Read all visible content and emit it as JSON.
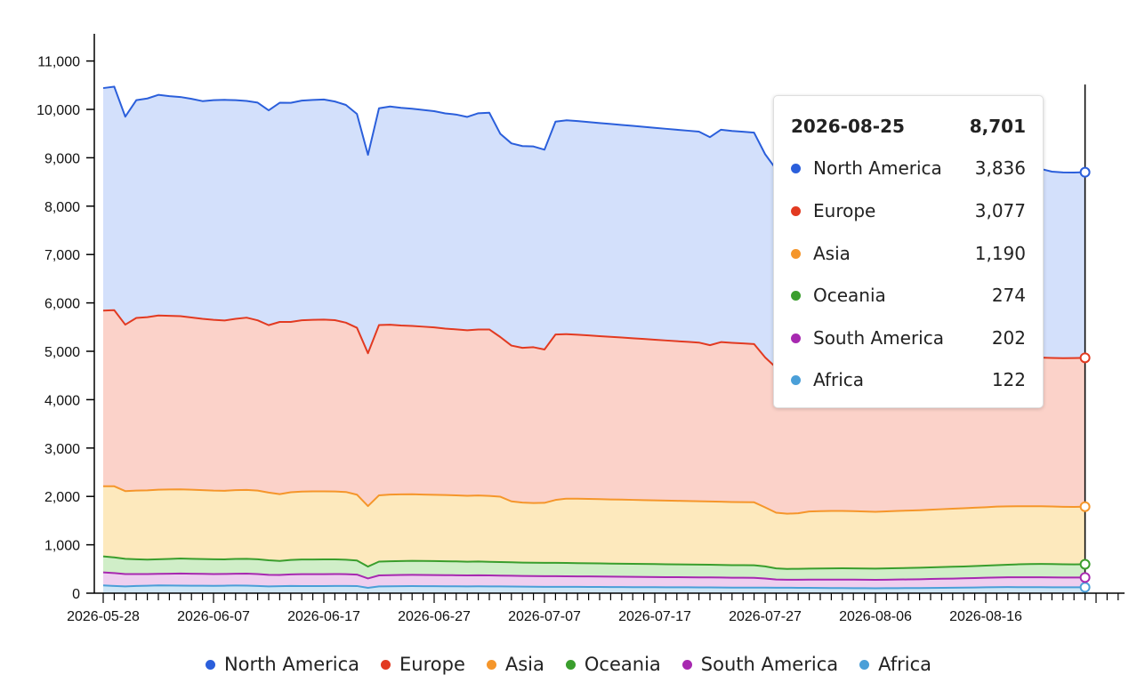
{
  "chart_data": {
    "type": "area",
    "stacked": true,
    "x_start": "2026-05-28",
    "x_end": "2026-08-25",
    "ylim": [
      0,
      11400
    ],
    "y_ticks": [
      "0",
      "1,000",
      "2,000",
      "3,000",
      "4,000",
      "5,000",
      "6,000",
      "7,000",
      "8,000",
      "9,000",
      "10,000",
      "11,000"
    ],
    "x_ticks": [
      "2026-05-28",
      "2026-06-07",
      "2026-06-17",
      "2026-06-27",
      "2026-07-07",
      "2026-07-17",
      "2026-07-27",
      "2026-08-06",
      "2026-08-16"
    ],
    "series": [
      {
        "name": "Africa",
        "color": "#4a9fd8",
        "fill": "#cfe6f6",
        "values": [
          160,
          150,
          140,
          150,
          155,
          160,
          158,
          156,
          155,
          154,
          152,
          155,
          158,
          156,
          150,
          140,
          145,
          150,
          148,
          146,
          148,
          150,
          150,
          148,
          110,
          140,
          142,
          145,
          146,
          145,
          144,
          143,
          142,
          140,
          142,
          141,
          140,
          138,
          136,
          134,
          132,
          132,
          131,
          130,
          129,
          128,
          127,
          126,
          125,
          124,
          123,
          122,
          121,
          121,
          120,
          120,
          118,
          116,
          116,
          115,
          114,
          113,
          112,
          111,
          110,
          108,
          106,
          105,
          104,
          103,
          102,
          103,
          104,
          105,
          106,
          108,
          110,
          112,
          115,
          118,
          121,
          124,
          126,
          125,
          124,
          123,
          122,
          121,
          121,
          122
        ]
      },
      {
        "name": "South America",
        "color": "#a729b0",
        "fill": "#eecff0",
        "values": [
          270,
          265,
          255,
          245,
          240,
          240,
          245,
          250,
          248,
          246,
          244,
          242,
          245,
          248,
          246,
          240,
          232,
          238,
          244,
          246,
          246,
          246,
          242,
          236,
          195,
          228,
          230,
          232,
          233,
          232,
          231,
          230,
          229,
          227,
          228,
          226,
          224,
          222,
          220,
          220,
          220,
          220,
          219,
          218,
          217,
          216,
          215,
          214,
          213,
          212,
          211,
          210,
          209,
          208,
          207,
          206,
          205,
          204,
          203,
          202,
          190,
          170,
          165,
          166,
          170,
          172,
          175,
          176,
          176,
          175,
          174,
          176,
          178,
          180,
          182,
          185,
          188,
          190,
          192,
          195,
          198,
          200,
          202,
          204,
          205,
          206,
          205,
          203,
          202,
          202
        ]
      },
      {
        "name": "Oceania",
        "color": "#3a9e2d",
        "fill": "#d0eec8",
        "values": [
          330,
          325,
          315,
          305,
          300,
          300,
          305,
          310,
          308,
          306,
          304,
          302,
          305,
          306,
          304,
          300,
          290,
          298,
          304,
          305,
          305,
          303,
          300,
          292,
          245,
          285,
          287,
          288,
          290,
          290,
          289,
          287,
          286,
          283,
          284,
          282,
          280,
          278,
          276,
          275,
          275,
          275,
          274,
          273,
          272,
          271,
          270,
          270,
          269,
          268,
          267,
          266,
          265,
          264,
          263,
          262,
          261,
          260,
          260,
          259,
          250,
          230,
          225,
          226,
          228,
          230,
          232,
          233,
          233,
          232,
          231,
          233,
          235,
          236,
          238,
          240,
          242,
          244,
          245,
          248,
          250,
          255,
          260,
          268,
          272,
          275,
          276,
          274,
          272,
          274
        ]
      },
      {
        "name": "Asia",
        "color": "#f5962b",
        "fill": "#fde9bd",
        "values": [
          1450,
          1470,
          1400,
          1420,
          1430,
          1440,
          1435,
          1430,
          1428,
          1425,
          1420,
          1418,
          1422,
          1425,
          1420,
          1400,
          1380,
          1400,
          1405,
          1408,
          1406,
          1404,
          1400,
          1360,
          1250,
          1370,
          1380,
          1378,
          1375,
          1372,
          1370,
          1368,
          1366,
          1364,
          1366,
          1362,
          1350,
          1260,
          1240,
          1235,
          1240,
          1300,
          1330,
          1332,
          1330,
          1328,
          1326,
          1324,
          1322,
          1320,
          1318,
          1316,
          1314,
          1312,
          1310,
          1308,
          1306,
          1305,
          1304,
          1303,
          1220,
          1150,
          1140,
          1150,
          1180,
          1185,
          1188,
          1186,
          1182,
          1178,
          1176,
          1180,
          1184,
          1186,
          1188,
          1192,
          1196,
          1200,
          1204,
          1206,
          1208,
          1210,
          1206,
          1200,
          1195,
          1192,
          1190,
          1188,
          1189,
          1190
        ]
      },
      {
        "name": "Europe",
        "color": "#e23a21",
        "fill": "#fbd2c9",
        "values": [
          3630,
          3640,
          3440,
          3570,
          3580,
          3600,
          3590,
          3580,
          3560,
          3540,
          3530,
          3520,
          3540,
          3560,
          3520,
          3460,
          3560,
          3520,
          3540,
          3545,
          3550,
          3540,
          3500,
          3450,
          3160,
          3520,
          3510,
          3490,
          3480,
          3470,
          3460,
          3440,
          3430,
          3420,
          3430,
          3440,
          3300,
          3220,
          3200,
          3220,
          3170,
          3420,
          3400,
          3390,
          3380,
          3370,
          3360,
          3350,
          3340,
          3330,
          3320,
          3310,
          3300,
          3290,
          3280,
          3230,
          3300,
          3290,
          3280,
          3270,
          3100,
          3000,
          2980,
          3000,
          3020,
          3030,
          3040,
          3045,
          3050,
          3055,
          3060,
          3065,
          3068,
          3070,
          3072,
          3074,
          3075,
          3076,
          3077,
          3078,
          3078,
          3078,
          3077,
          3076,
          3075,
          3074,
          3070,
          3072,
          3075,
          3077
        ]
      },
      {
        "name": "North America",
        "color": "#2b5fdb",
        "fill": "#d3e0fb",
        "values": [
          4600,
          4620,
          4300,
          4500,
          4520,
          4560,
          4540,
          4530,
          4520,
          4500,
          4540,
          4560,
          4520,
          4480,
          4500,
          4440,
          4530,
          4530,
          4540,
          4545,
          4550,
          4520,
          4500,
          4420,
          4100,
          4480,
          4510,
          4500,
          4490,
          4480,
          4470,
          4450,
          4440,
          4410,
          4470,
          4480,
          4200,
          4180,
          4170,
          4150,
          4130,
          4400,
          4420,
          4415,
          4410,
          4405,
          4400,
          4395,
          4390,
          4385,
          4380,
          4375,
          4370,
          4365,
          4360,
          4300,
          4390,
          4380,
          4375,
          4370,
          4200,
          4100,
          4080,
          4090,
          4120,
          4130,
          4150,
          4170,
          4180,
          4190,
          4195,
          4200,
          4190,
          4180,
          4170,
          4160,
          4150,
          4140,
          4130,
          4120,
          4100,
          4080,
          4050,
          4000,
          3950,
          3900,
          3850,
          3840,
          3836,
          3836
        ]
      }
    ],
    "tooltip": {
      "date": "2026-08-25",
      "total": "8,701",
      "rows": [
        {
          "name": "North America",
          "value": "3,836",
          "color": "#2b5fdb"
        },
        {
          "name": "Europe",
          "value": "3,077",
          "color": "#e23a21"
        },
        {
          "name": "Asia",
          "value": "1,190",
          "color": "#f5962b"
        },
        {
          "name": "Oceania",
          "value": "274",
          "color": "#3a9e2d"
        },
        {
          "name": "South America",
          "value": "202",
          "color": "#a729b0"
        },
        {
          "name": "Africa",
          "value": "122",
          "color": "#4a9fd8"
        }
      ]
    },
    "legend": [
      {
        "name": "North America",
        "color": "#2b5fdb"
      },
      {
        "name": "Europe",
        "color": "#e23a21"
      },
      {
        "name": "Asia",
        "color": "#f5962b"
      },
      {
        "name": "Oceania",
        "color": "#3a9e2d"
      },
      {
        "name": "South America",
        "color": "#a729b0"
      },
      {
        "name": "Africa",
        "color": "#4a9fd8"
      }
    ],
    "legend_placement": "bottom",
    "grid": false
  }
}
